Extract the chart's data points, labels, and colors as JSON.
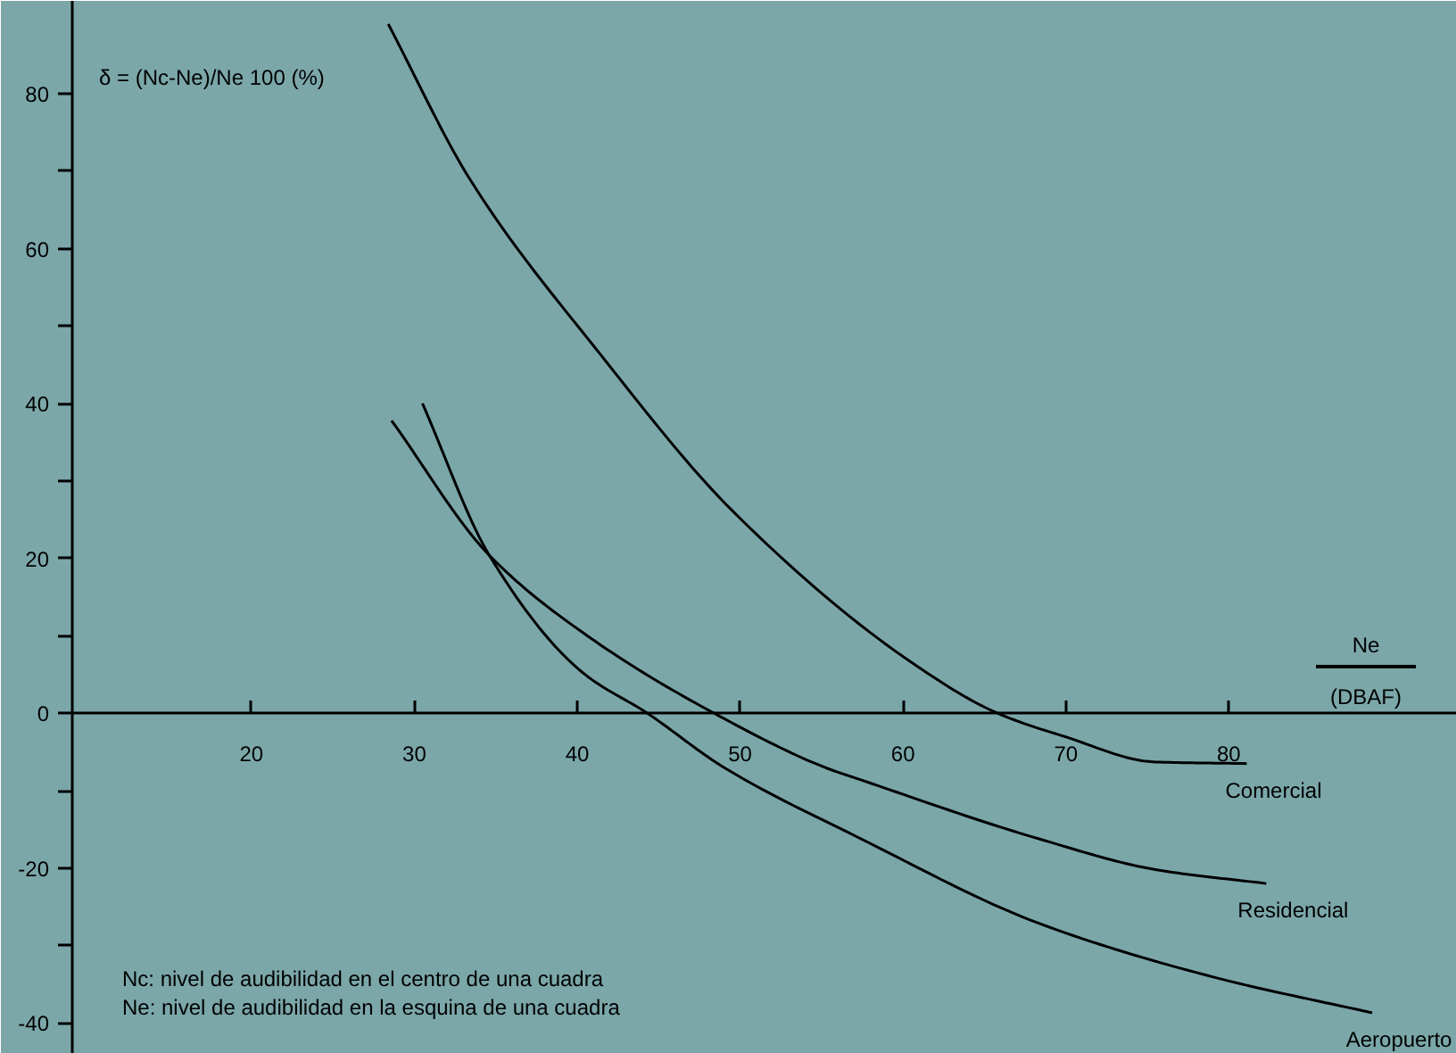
{
  "chart_data": {
    "type": "line",
    "ylabel": "δ = (Nc-Ne)/Ne 100 (%)",
    "xlabel": "Ne (DBAF)",
    "xlim": [
      9,
      94
    ],
    "ylim": [
      -44,
      92
    ],
    "xticks": [
      20,
      30,
      40,
      50,
      60,
      70,
      80
    ],
    "yticks": [
      {
        "value": -40,
        "label": "-40"
      },
      {
        "value": -30,
        "label": null
      },
      {
        "value": -20,
        "label": "-20"
      },
      {
        "value": -10,
        "label": null
      },
      0,
      {
        "value": 10,
        "label": null
      },
      20,
      {
        "value": 30,
        "label": null
      },
      40,
      {
        "value": 50,
        "label": null
      },
      60,
      {
        "value": 70,
        "label": null
      },
      80
    ],
    "grid": false,
    "marker": "none",
    "line_style": "solid",
    "series": [
      {
        "name": "Comercial",
        "color": "#000000",
        "x": [
          28.4,
          33.4,
          41.4,
          49.5,
          60.7,
          65.8,
          69.9,
          75.5,
          81.1
        ],
        "values": [
          89,
          69,
          46.4,
          26.2,
          6.3,
          0,
          -3,
          -6.3,
          -6.5
        ]
      },
      {
        "name": "Residencial",
        "color": "#000000",
        "x": [
          28.6,
          34.6,
          41.1,
          48.4,
          55.2,
          57.4,
          68.3,
          75.5,
          82.3
        ],
        "values": [
          37.8,
          20.4,
          9.3,
          0,
          -7,
          -8.6,
          -16.2,
          -20.2,
          -22
        ]
      },
      {
        "name": "Aeropuerto",
        "color": "#000000",
        "x": [
          30.5,
          34.6,
          40.3,
          44.3,
          49,
          57.4,
          68.3,
          79.1,
          88.8
        ],
        "values": [
          40,
          20.4,
          5.3,
          0,
          -7,
          -16.2,
          -27.1,
          -34.1,
          -38.7
        ]
      }
    ],
    "annotations": [
      "Nc: nivel de audibilidad en el centro de una cuadra",
      "Ne: nivel de audibilidad en la esquina de una cuadra"
    ]
  }
}
